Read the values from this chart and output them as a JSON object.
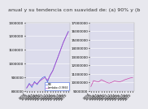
{
  "title": "anual y su tendencia con suavidad de: (a) 90% y (b",
  "title_fontsize": 4.5,
  "title_color": "#333333",
  "background_color": "#e8e8ee",
  "plot_bg_color": "#dcdcec",
  "left_chart": {
    "raw_values": [
      820000,
      855000,
      825000,
      868000,
      845000,
      875000,
      895000,
      905000,
      865000,
      915000,
      948000,
      998000,
      1048000,
      1100000,
      1152000,
      1195000,
      1235000
    ],
    "trend_values": [
      822000,
      848000,
      840000,
      860000,
      853000,
      871000,
      885000,
      897000,
      878000,
      912000,
      945000,
      995000,
      1046000,
      1098000,
      1150000,
      1193000,
      1232000
    ],
    "ylim": [
      800000,
      1300000
    ],
    "yticks": [
      800000,
      900000,
      1000000,
      1100000,
      1200000,
      1300000
    ],
    "raw_color": "#4466dd",
    "trend_color": "#bb44cc",
    "legend_raw": "PIB",
    "legend_trend": "Lambda=0.9464"
  },
  "right_chart": {
    "raw_values": [
      9500000,
      10200000,
      10100000,
      10050000,
      10300000,
      10150000,
      10000000,
      9900000,
      10000000,
      10150000,
      10100000,
      10050000,
      10150000,
      10300000,
      10400000,
      10500000,
      10550000
    ],
    "ylim": [
      9000000,
      17000000
    ],
    "yticks": [
      9000000,
      10000000,
      11000000,
      12000000,
      13000000,
      14000000,
      15000000,
      16000000,
      17000000
    ],
    "raw_color": "#cc44aa"
  },
  "x_labels": [
    "1994",
    "1995",
    "1996",
    "1997",
    "1998",
    "1999",
    "2000",
    "2001",
    "2002",
    "2003",
    "2004",
    "2005",
    "2006",
    "2007",
    "2008",
    "2009",
    "2010"
  ],
  "grid_color": "#ffffff",
  "tick_fontsize": 3.0
}
